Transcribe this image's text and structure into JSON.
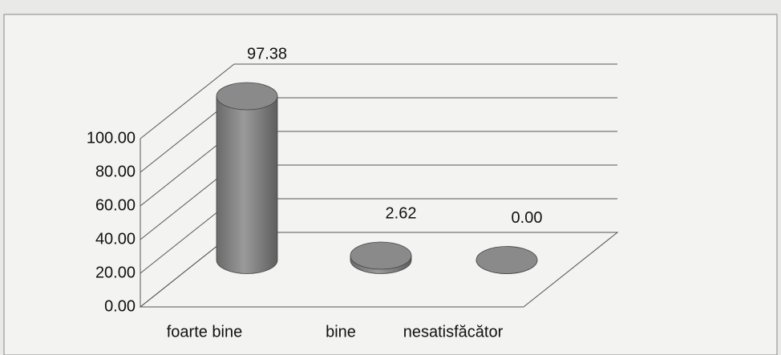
{
  "chart_data": {
    "type": "bar3d",
    "categories": [
      "foarte bine",
      "bine",
      "nesatisfăcător"
    ],
    "values": [
      97.38,
      2.62,
      0
    ],
    "value_labels": [
      "97.38",
      "2.62",
      "0.00"
    ],
    "color": "#7d7d7d",
    "ylim": [
      0,
      100
    ],
    "yticks": [
      {
        "value": 0,
        "label": "0.00"
      },
      {
        "value": 20,
        "label": "20.00"
      },
      {
        "value": 40,
        "label": "40.00"
      },
      {
        "value": 60,
        "label": "60.00"
      },
      {
        "value": 80,
        "label": "80.00"
      },
      {
        "value": 100,
        "label": "100.00"
      }
    ],
    "grid": true
  }
}
